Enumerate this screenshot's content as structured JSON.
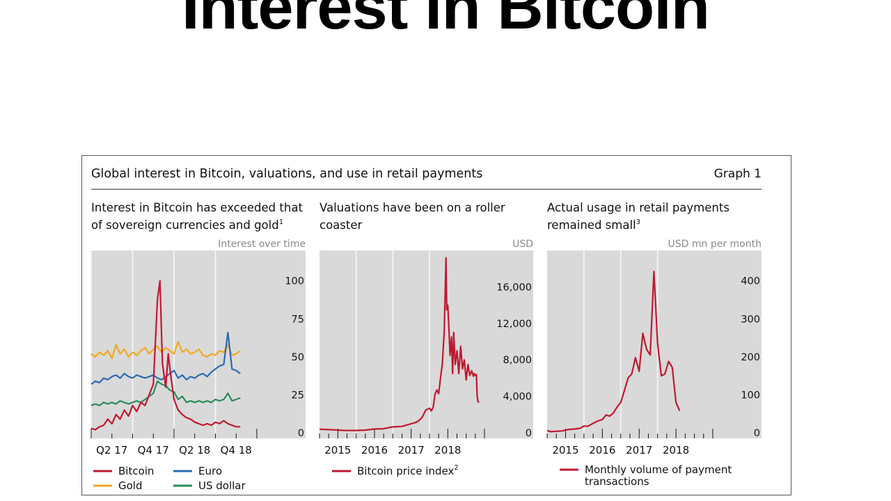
{
  "slide": {
    "title": "Interest in Bitcoin"
  },
  "figure": {
    "title": "Global interest in Bitcoin, valuations, and use in retail payments",
    "label": "Graph 1"
  },
  "colors": {
    "bitcoin": "#c0182f",
    "euro": "#2a6ab5",
    "gold": "#f2a81d",
    "usd": "#2b8a5e",
    "panel_bg": "#d9d9d9"
  },
  "chart_data": [
    {
      "type": "line",
      "title_lines": [
        "Interest in Bitcoin has exceeded that",
        "of sovereign currencies and gold"
      ],
      "title_sup": "1",
      "unit_label": "Interest over time",
      "ylim": [
        0,
        120
      ],
      "xlim": [
        2017.0,
        2019.0
      ],
      "yticks": [
        {
          "v": 0,
          "label": "0"
        },
        {
          "v": 25,
          "label": "25"
        },
        {
          "v": 50,
          "label": "50"
        },
        {
          "v": 75,
          "label": "75"
        },
        {
          "v": 100,
          "label": "100"
        }
      ],
      "xticks": [
        {
          "v": 2017.25,
          "label": "Q2 17"
        },
        {
          "v": 2017.75,
          "label": "Q4 17"
        },
        {
          "v": 2018.25,
          "label": "Q2 18"
        },
        {
          "v": 2018.75,
          "label": "Q4 18"
        }
      ],
      "grid_x": [
        2017.0,
        2017.5,
        2018.0,
        2018.5
      ],
      "series": [
        {
          "name": "Gold",
          "color_key": "gold",
          "x": [
            2017.0,
            2017.05,
            2017.1,
            2017.15,
            2017.2,
            2017.25,
            2017.3,
            2017.35,
            2017.4,
            2017.45,
            2017.5,
            2017.55,
            2017.6,
            2017.65,
            2017.7,
            2017.75,
            2017.8,
            2017.85,
            2017.9,
            2017.95,
            2018.0,
            2018.05,
            2018.1,
            2018.15,
            2018.2,
            2018.25,
            2018.3,
            2018.35,
            2018.4,
            2018.45,
            2018.5,
            2018.55,
            2018.6,
            2018.65,
            2018.7,
            2018.75,
            2018.8
          ],
          "values": [
            52,
            50,
            53,
            51,
            54,
            49,
            58,
            52,
            55,
            50,
            53,
            51,
            54,
            56,
            52,
            55,
            57,
            53,
            56,
            54,
            52,
            60,
            53,
            55,
            52,
            53,
            55,
            51,
            50,
            52,
            51,
            54,
            53,
            58,
            51,
            52,
            54
          ]
        },
        {
          "name": "Euro",
          "color_key": "euro",
          "x": [
            2017.0,
            2017.05,
            2017.1,
            2017.15,
            2017.2,
            2017.25,
            2017.3,
            2017.35,
            2017.4,
            2017.45,
            2017.5,
            2017.55,
            2017.6,
            2017.65,
            2017.7,
            2017.75,
            2017.8,
            2017.85,
            2017.9,
            2017.95,
            2018.0,
            2018.05,
            2018.1,
            2018.15,
            2018.2,
            2018.25,
            2018.3,
            2018.35,
            2018.4,
            2018.45,
            2018.5,
            2018.55,
            2018.6,
            2018.65,
            2018.7,
            2018.75,
            2018.8
          ],
          "values": [
            32,
            34,
            33,
            36,
            35,
            37,
            38,
            36,
            39,
            37,
            36,
            38,
            37,
            36,
            37,
            38,
            36,
            35,
            37,
            39,
            41,
            36,
            38,
            35,
            37,
            36,
            38,
            39,
            37,
            40,
            42,
            44,
            45,
            66,
            42,
            41,
            39
          ]
        },
        {
          "name": "US dollar",
          "color_key": "usd",
          "x": [
            2017.0,
            2017.05,
            2017.1,
            2017.15,
            2017.2,
            2017.25,
            2017.3,
            2017.35,
            2017.4,
            2017.45,
            2017.5,
            2017.55,
            2017.6,
            2017.65,
            2017.7,
            2017.75,
            2017.8,
            2017.85,
            2017.9,
            2017.95,
            2018.0,
            2018.05,
            2018.1,
            2018.15,
            2018.2,
            2018.25,
            2018.3,
            2018.35,
            2018.4,
            2018.45,
            2018.5,
            2018.55,
            2018.6,
            2018.65,
            2018.7,
            2018.75,
            2018.8
          ],
          "values": [
            18,
            19,
            18,
            20,
            19,
            20,
            19,
            21,
            20,
            19,
            20,
            21,
            20,
            22,
            24,
            26,
            34,
            32,
            31,
            28,
            27,
            22,
            24,
            20,
            21,
            20,
            21,
            20,
            21,
            20,
            22,
            21,
            22,
            26,
            21,
            22,
            23
          ]
        },
        {
          "name": "Bitcoin",
          "color_key": "bitcoin",
          "x": [
            2017.0,
            2017.05,
            2017.1,
            2017.15,
            2017.2,
            2017.25,
            2017.3,
            2017.35,
            2017.4,
            2017.45,
            2017.5,
            2017.55,
            2017.6,
            2017.65,
            2017.7,
            2017.75,
            2017.8,
            2017.83,
            2017.86,
            2017.9,
            2017.93,
            2017.96,
            2018.0,
            2018.05,
            2018.1,
            2018.15,
            2018.2,
            2018.25,
            2018.3,
            2018.35,
            2018.4,
            2018.45,
            2018.5,
            2018.55,
            2018.6,
            2018.65,
            2018.7,
            2018.75,
            2018.8
          ],
          "values": [
            3,
            2,
            4,
            5,
            9,
            6,
            12,
            9,
            15,
            11,
            18,
            14,
            20,
            18,
            25,
            32,
            88,
            100,
            46,
            30,
            52,
            38,
            22,
            15,
            12,
            10,
            9,
            7,
            6,
            5,
            6,
            5,
            7,
            6,
            8,
            6,
            5,
            4,
            4
          ]
        }
      ],
      "legend": [
        "Bitcoin",
        "Euro",
        "Gold",
        "US dollar"
      ]
    },
    {
      "type": "line",
      "title_lines": [
        "Valuations have been on a roller",
        "coaster"
      ],
      "unit_label": "USD",
      "ylim": [
        0,
        20000
      ],
      "xlim": [
        2014.5,
        2019.0
      ],
      "yticks": [
        {
          "v": 0,
          "label": "0"
        },
        {
          "v": 4000,
          "label": "4,000"
        },
        {
          "v": 8000,
          "label": "8,000"
        },
        {
          "v": 12000,
          "label": "12,000"
        },
        {
          "v": 16000,
          "label": "16,000"
        }
      ],
      "xticks": [
        {
          "v": 2015.0,
          "label": "2015"
        },
        {
          "v": 2016.0,
          "label": "2016"
        },
        {
          "v": 2017.0,
          "label": "2017"
        },
        {
          "v": 2018.0,
          "label": "2018"
        }
      ],
      "grid_x": [
        2015.5,
        2016.5,
        2017.5
      ],
      "series": [
        {
          "name": "Bitcoin price index",
          "name_sup": "2",
          "color_key": "bitcoin",
          "x": [
            2014.5,
            2014.75,
            2015.0,
            2015.25,
            2015.5,
            2015.75,
            2016.0,
            2016.25,
            2016.5,
            2016.75,
            2017.0,
            2017.1,
            2017.2,
            2017.3,
            2017.4,
            2017.5,
            2017.55,
            2017.6,
            2017.65,
            2017.7,
            2017.75,
            2017.8,
            2017.85,
            2017.9,
            2017.93,
            2017.95,
            2017.97,
            2018.0,
            2018.03,
            2018.06,
            2018.1,
            2018.13,
            2018.16,
            2018.2,
            2018.25,
            2018.3,
            2018.35,
            2018.4,
            2018.45,
            2018.5,
            2018.55,
            2018.6,
            2018.65,
            2018.7,
            2018.72,
            2018.75,
            2018.78,
            2018.8,
            2018.82,
            2018.84
          ],
          "values": [
            400,
            350,
            300,
            250,
            260,
            300,
            420,
            450,
            650,
            700,
            1000,
            1100,
            1300,
            1700,
            2500,
            2700,
            2400,
            2800,
            4200,
            4700,
            4300,
            6000,
            7500,
            11000,
            15500,
            19200,
            13500,
            14000,
            11500,
            8500,
            10500,
            6500,
            11000,
            7500,
            9000,
            6500,
            9500,
            7000,
            8000,
            5800,
            7500,
            6300,
            6800,
            6200,
            6500,
            6300,
            6400,
            4000,
            3500,
            3300
          ]
        }
      ],
      "legend": [
        "Bitcoin price index"
      ]
    },
    {
      "type": "line",
      "title_lines": [
        "Actual usage in retail payments",
        "remained small"
      ],
      "title_sup": "3",
      "unit_label": "USD mn per month",
      "ylim": [
        0,
        480
      ],
      "xlim": [
        2014.5,
        2019.0
      ],
      "yticks": [
        {
          "v": 0,
          "label": "0"
        },
        {
          "v": 100,
          "label": "100"
        },
        {
          "v": 200,
          "label": "200"
        },
        {
          "v": 300,
          "label": "300"
        },
        {
          "v": 400,
          "label": "400"
        }
      ],
      "xticks": [
        {
          "v": 2015.0,
          "label": "2015"
        },
        {
          "v": 2016.0,
          "label": "2016"
        },
        {
          "v": 2017.0,
          "label": "2017"
        },
        {
          "v": 2018.0,
          "label": "2018"
        }
      ],
      "grid_x": [
        2015.5,
        2016.5,
        2017.5
      ],
      "series": [
        {
          "name": "Monthly volume of payment transactions",
          "color_key": "bitcoin",
          "x": [
            2014.5,
            2014.6,
            2014.75,
            2014.9,
            2015.0,
            2015.1,
            2015.25,
            2015.4,
            2015.5,
            2015.6,
            2015.75,
            2015.9,
            2016.0,
            2016.1,
            2016.2,
            2016.3,
            2016.4,
            2016.5,
            2016.6,
            2016.7,
            2016.8,
            2016.9,
            2017.0,
            2017.1,
            2017.2,
            2017.3,
            2017.4,
            2017.5,
            2017.6,
            2017.7,
            2017.8,
            2017.9,
            2018.0,
            2018.1
          ],
          "values": [
            6,
            3,
            4,
            5,
            7,
            9,
            10,
            12,
            18,
            17,
            25,
            32,
            35,
            47,
            44,
            52,
            68,
            80,
            112,
            145,
            155,
            198,
            162,
            262,
            220,
            205,
            425,
            235,
            150,
            155,
            188,
            172,
            80,
            58
          ]
        }
      ],
      "legend_lines": [
        "Monthly volume of payment",
        "transactions"
      ]
    }
  ]
}
